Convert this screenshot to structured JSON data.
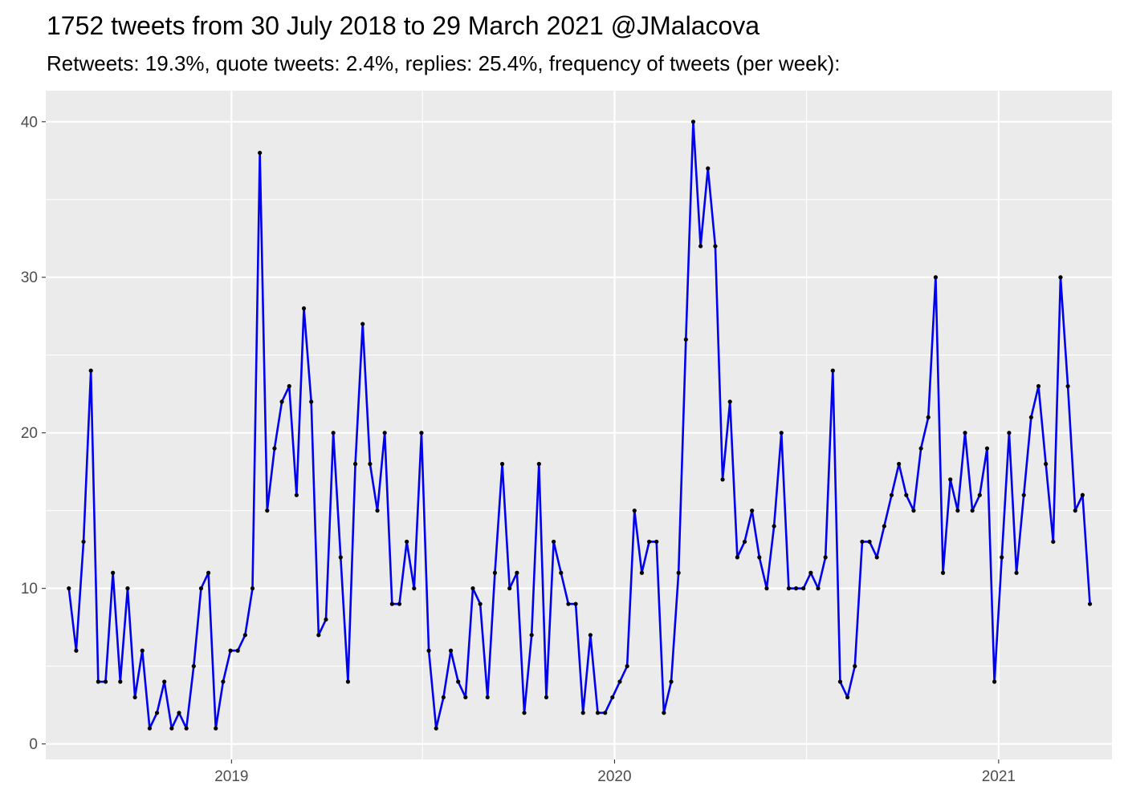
{
  "chart_data": {
    "type": "line",
    "title": "1752 tweets from 30 July 2018 to 29 March 2021 @JMalacova",
    "subtitle": "Retweets: 19.3%, quote tweets: 2.4%, replies: 25.4%, frequency of tweets (per week):",
    "xlabel": "",
    "ylabel": "",
    "x_axis": {
      "type": "date",
      "range": [
        "2018-07-08",
        "2021-04-19"
      ],
      "tick_labels": [
        {
          "date": "2019-01-01",
          "label": "2019"
        },
        {
          "date": "2020-01-01",
          "label": "2020"
        },
        {
          "date": "2021-01-01",
          "label": "2021"
        }
      ]
    },
    "y_axis": {
      "range": [
        -1,
        42
      ],
      "ticks": [
        0,
        10,
        20,
        30,
        40
      ],
      "tick_labels": [
        "0",
        "10",
        "20",
        "30",
        "40"
      ]
    },
    "grid": true,
    "legend": "none",
    "colors": {
      "panel_background": "#ebebeb",
      "grid_line": "#ffffff",
      "line": "#0000ee",
      "point": "#000000"
    },
    "series": [
      {
        "start": "2018-07-30",
        "step_days": 7,
        "values": [
          10,
          6,
          13,
          24,
          4,
          4,
          11,
          4,
          10,
          3,
          6,
          1,
          2,
          4,
          1,
          2,
          1,
          5,
          10,
          11,
          1,
          4,
          6,
          6,
          7,
          10,
          38,
          15,
          19,
          22,
          23,
          16,
          28,
          22,
          7,
          8,
          20,
          12,
          4,
          18,
          27,
          18,
          15,
          20,
          9,
          9,
          13,
          10,
          20,
          6,
          1,
          3,
          6,
          4,
          3,
          10,
          9,
          3,
          11,
          18,
          10,
          11,
          2,
          7,
          18,
          3,
          13,
          11,
          9,
          9,
          2,
          7,
          2,
          2,
          3,
          4,
          5,
          15,
          11,
          13,
          13,
          2,
          4,
          11,
          26,
          40,
          32,
          37,
          32,
          17,
          22,
          12,
          13,
          15,
          12,
          10,
          14,
          20,
          10,
          10,
          10,
          11,
          10,
          12,
          24,
          4,
          3,
          5,
          13,
          13,
          12,
          14,
          16,
          18,
          16,
          15,
          19,
          21,
          30,
          11,
          17,
          15,
          20,
          15,
          16,
          19,
          4,
          12,
          20,
          11,
          16,
          21,
          23,
          18,
          13,
          30,
          23,
          15,
          16,
          9
        ]
      }
    ]
  }
}
